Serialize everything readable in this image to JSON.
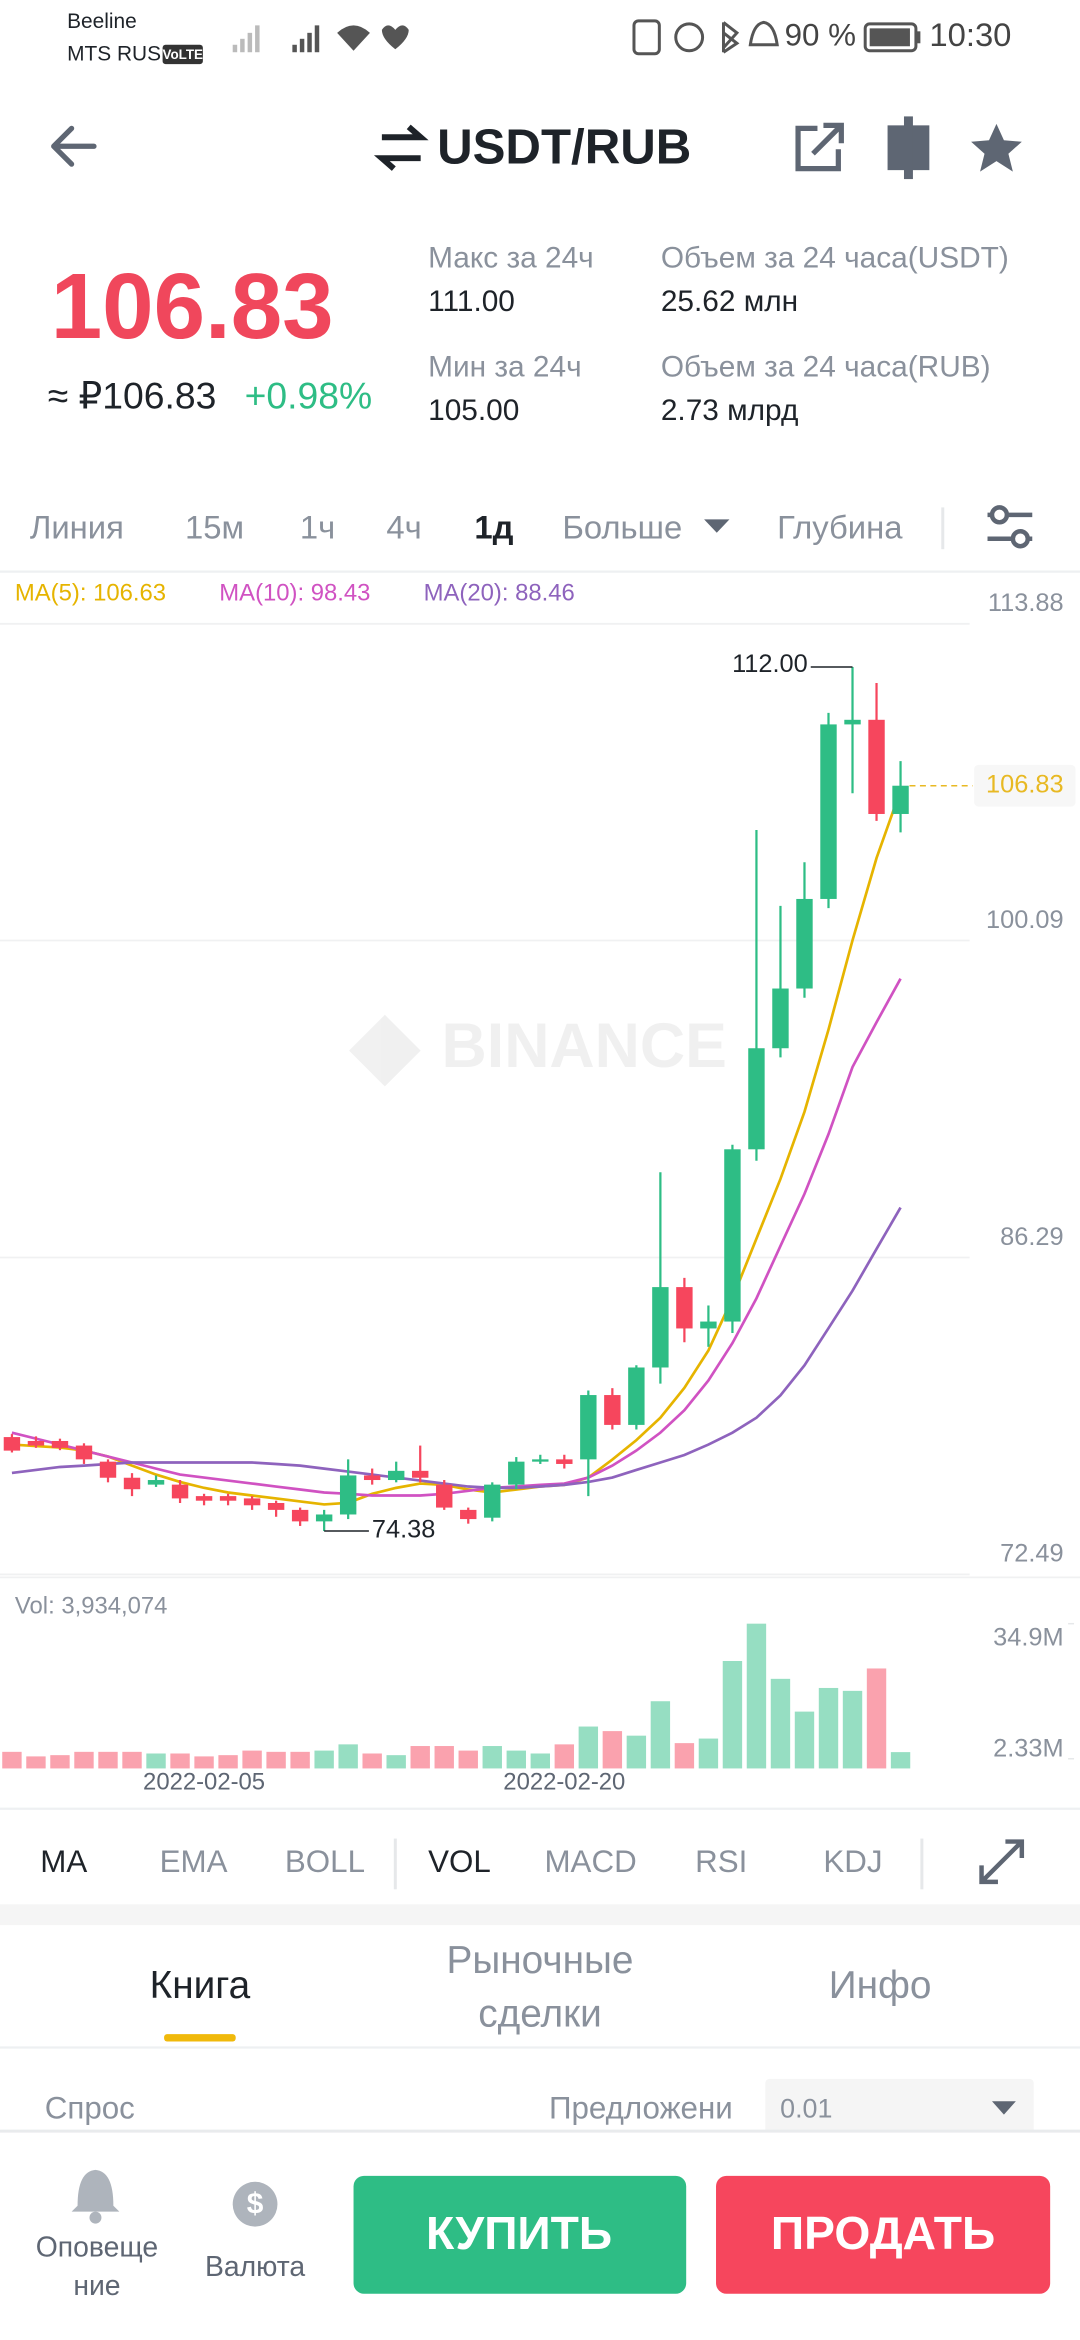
{
  "status_bar": {
    "carrier1": "Beeline",
    "carrier2": "MTS RUS",
    "volte": "VoLTE",
    "battery": "90 %",
    "time": "10:30"
  },
  "header": {
    "pair": "USDT/RUB"
  },
  "ticker": {
    "price": "106.83",
    "fiat": "≈ ₽106.83",
    "change": "+0.98%",
    "high_label": "Макс за 24ч",
    "high": "111.00",
    "low_label": "Мин за 24ч",
    "low": "105.00",
    "vol_usdt_label": "Объем за 24 часа(USDT)",
    "vol_usdt": "25.62 млн",
    "vol_rub_label": "Объем за 24 часа(RUB)",
    "vol_rub": "2.73 млрд"
  },
  "intervals": [
    "Линия",
    "15м",
    "1ч",
    "4ч",
    "1д",
    "Больше",
    "Глубина"
  ],
  "watermark": "BINANCE",
  "chart_data": {
    "type": "candlestick",
    "categories": [
      null,
      null,
      null,
      null,
      null,
      null,
      null,
      null,
      "2022-02-05",
      null,
      null,
      null,
      null,
      null,
      null,
      null,
      null,
      null,
      null,
      null,
      null,
      null,
      null,
      "2022-02-20",
      null,
      null,
      null,
      null,
      null,
      null,
      null,
      null,
      null,
      null,
      null,
      null,
      null,
      null
    ],
    "open": [
      78.47,
      78.3,
      78.3,
      78.1,
      77.4,
      76.7,
      76.4,
      76.4,
      75.9,
      75.9,
      75.8,
      75.6,
      75.3,
      74.8,
      75.1,
      76.8,
      76.6,
      77.0,
      76.4,
      75.3,
      74.96,
      76.4,
      77.4,
      77.5,
      77.5,
      80.3,
      79.0,
      81.5,
      85.0,
      83.2,
      83.5,
      91.0,
      95.4,
      98.0,
      101.9,
      109.5,
      109.7,
      105.6
    ],
    "high": [
      78.6,
      78.5,
      78.4,
      78.2,
      77.5,
      76.9,
      76.8,
      76.6,
      76.0,
      76.0,
      75.9,
      75.7,
      75.4,
      75.3,
      77.5,
      77.1,
      77.4,
      78.1,
      76.6,
      75.4,
      76.5,
      77.6,
      77.7,
      77.7,
      80.5,
      80.6,
      81.6,
      90.0,
      85.4,
      84.2,
      91.2,
      104.9,
      101.6,
      103.5,
      110.0,
      112.0,
      111.3,
      107.9
    ],
    "low": [
      77.8,
      78.0,
      77.9,
      77.3,
      76.5,
      75.9,
      76.3,
      75.6,
      75.5,
      75.5,
      75.3,
      75.0,
      74.6,
      74.38,
      74.9,
      76.4,
      76.5,
      76.5,
      75.3,
      74.7,
      74.8,
      76.2,
      77.3,
      77.1,
      75.9,
      78.8,
      78.8,
      80.8,
      82.6,
      82.4,
      83.0,
      90.5,
      95.0,
      97.6,
      101.5,
      106.5,
      105.3,
      104.8
    ],
    "close": [
      77.88,
      78.1,
      78.0,
      77.5,
      76.7,
      76.2,
      76.6,
      75.8,
      75.7,
      75.7,
      75.5,
      75.3,
      74.8,
      75.1,
      76.8,
      76.6,
      77.0,
      76.7,
      75.4,
      74.9,
      76.4,
      77.4,
      77.5,
      77.3,
      80.3,
      79.0,
      81.5,
      85.0,
      83.2,
      83.5,
      91.0,
      95.4,
      98.0,
      101.9,
      109.5,
      109.7,
      105.6,
      106.83
    ],
    "up_color": "#2ebd85",
    "down_color": "#f6465d",
    "ylim": [
      72.49,
      113.88
    ],
    "yticks": [
      113.88,
      100.09,
      86.29,
      72.49
    ],
    "grid": true,
    "max_label": "112.00",
    "min_label": "74.38",
    "last_label": "106.83",
    "last_color": "#e8b923",
    "ma": [
      {
        "name": "MA(5): 106.63",
        "color": "#e6b400",
        "values": [
          78.14,
          78.08,
          78.01,
          77.88,
          77.62,
          77.23,
          76.84,
          76.52,
          76.26,
          76.06,
          75.93,
          75.8,
          75.67,
          75.54,
          75.61,
          76.0,
          76.26,
          76.45,
          76.39,
          76.19,
          76.06,
          76.19,
          76.32,
          76.39,
          76.71,
          77.49,
          78.34,
          79.31,
          80.61,
          82.24,
          84.51,
          87.11,
          89.71,
          92.63,
          96.21,
          100.1,
          103.68,
          106.63
        ]
      },
      {
        "name": "MA(10): 98.43",
        "color": "#d052c2",
        "values": [
          78.66,
          78.4,
          78.14,
          77.88,
          77.62,
          77.36,
          77.1,
          76.84,
          76.71,
          76.58,
          76.45,
          76.32,
          76.19,
          76.06,
          76.0,
          75.93,
          75.93,
          75.93,
          76.0,
          76.13,
          76.26,
          76.32,
          76.39,
          76.45,
          76.71,
          77.23,
          77.88,
          78.66,
          79.64,
          80.94,
          82.56,
          84.51,
          86.79,
          89.06,
          91.66,
          94.58,
          96.53,
          98.43
        ]
      },
      {
        "name": "MA(20): 88.46",
        "color": "#8e63bd",
        "values": [
          76.91,
          77.04,
          77.17,
          77.23,
          77.3,
          77.36,
          77.36,
          77.36,
          77.36,
          77.36,
          77.36,
          77.3,
          77.23,
          77.1,
          76.97,
          76.84,
          76.71,
          76.58,
          76.45,
          76.32,
          76.26,
          76.26,
          76.32,
          76.39,
          76.52,
          76.71,
          77.04,
          77.36,
          77.69,
          78.14,
          78.66,
          79.31,
          80.29,
          81.59,
          83.21,
          84.84,
          86.66,
          88.46
        ]
      }
    ],
    "volume": {
      "label": "Vol: 3,934,074",
      "values": [
        4000000,
        2900000,
        3200000,
        4000000,
        4000000,
        4000000,
        3600000,
        3600000,
        2900000,
        3200000,
        4300000,
        4000000,
        4000000,
        4300000,
        5800000,
        3600000,
        3200000,
        5400000,
        5400000,
        4300000,
        5400000,
        4300000,
        3600000,
        5800000,
        10100000,
        9000000,
        7900000,
        16200000,
        6100000,
        7200000,
        25900000,
        34900000,
        21600000,
        13700000,
        19400000,
        18700000,
        24100000,
        3934074
      ],
      "ylim": [
        0,
        34900000
      ],
      "yticks": [
        {
          "value": 34900000,
          "label": "34.9M"
        },
        {
          "value": 2330000,
          "label": "2.33M"
        }
      ]
    }
  },
  "indicators": [
    "MA",
    "EMA",
    "BOLL",
    "VOL",
    "MACD",
    "RSI",
    "KDJ"
  ],
  "tabs": [
    "Книга",
    "Рыночные сделки",
    "Инфо"
  ],
  "book": {
    "bid": "Спрос",
    "ask": "Предложени",
    "step": "0.01"
  },
  "bottom": {
    "alerts": "Оповещение",
    "currency": "Валюта",
    "buy": "КУПИТЬ",
    "sell": "ПРОДАТЬ"
  }
}
